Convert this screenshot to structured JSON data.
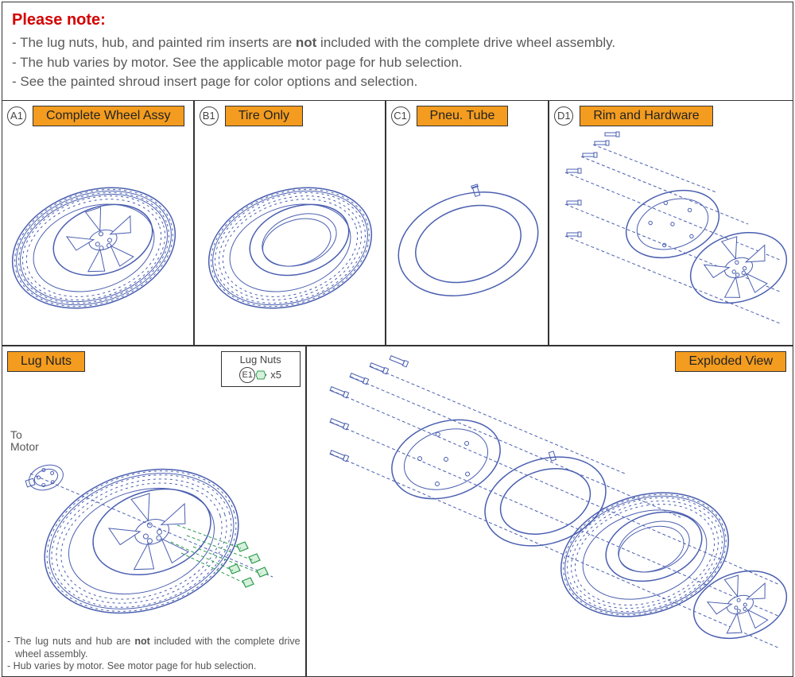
{
  "colors": {
    "border": "#333333",
    "line": "#4a5fb0",
    "tire_fill": "#f3f5fa",
    "rim_fill": "#ffffff",
    "accent_orange": "#f39c1f",
    "nut_green_stroke": "#2a9b4a",
    "nut_green_fill": "#d6f0dd",
    "text_gray": "#5a5a5a",
    "note_red": "#d40000",
    "background": "#ffffff"
  },
  "note": {
    "title": "Please note:",
    "items": [
      "The lug nuts, hub, and painted rim inserts are <b>not</b> included with the complete drive wheel assembly.",
      "The hub varies by motor. See the applicable motor page for hub selection.",
      "See the painted shroud insert page for color options and selection."
    ]
  },
  "panels": {
    "a1": {
      "callout": "A1",
      "label": "Complete Wheel Assy"
    },
    "b1": {
      "callout": "B1",
      "label": "Tire Only"
    },
    "c1": {
      "callout": "C1",
      "label": "Pneu. Tube"
    },
    "d1": {
      "callout": "D1",
      "label": "Rim and Hardware"
    },
    "lug": {
      "label": "Lug Nuts"
    },
    "exploded": {
      "label": "Exploded View"
    }
  },
  "lugbox": {
    "title": "Lug Nuts",
    "callout": "E1",
    "qty_text": "x5",
    "qty": 5
  },
  "to_motor_label": "To\nMotor",
  "lug_footnotes": [
    "The lug nuts and hub are <b>not</b> included with the complete drive wheel assembly.",
    "Hub varies by motor. See motor page for hub selection."
  ],
  "diagram": {
    "type": "technical-exploded",
    "drive_wheel": {
      "tire_tread_rings": 3,
      "rim_spokes": 5,
      "rim_bolts": 6,
      "lug_nuts_qty": 5
    }
  }
}
